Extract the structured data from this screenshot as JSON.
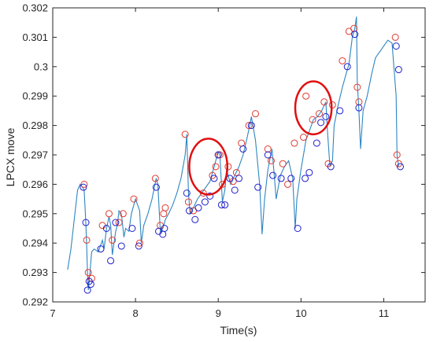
{
  "chart_data": {
    "type": "line",
    "xlabel": "Time(s)",
    "ylabel": "LPCX move",
    "xlim": [
      7,
      11.5
    ],
    "ylim": [
      0.292,
      0.302
    ],
    "xticks": [
      "7",
      "8",
      "9",
      "10",
      "11"
    ],
    "yticks": [
      "0.292",
      "0.293",
      "0.294",
      "0.295",
      "0.296",
      "0.297",
      "0.298",
      "0.299",
      "0.3",
      "0.301",
      "0.302"
    ],
    "grid": false,
    "colors": {
      "line": "#2e86c1",
      "red_markers": "#e03c31",
      "blue_markers": "#1f1fcc",
      "ellipse": "#e01010"
    },
    "series": [
      {
        "role": "trace",
        "x": [
          7.18,
          7.22,
          7.26,
          7.3,
          7.33,
          7.36,
          7.38,
          7.4,
          7.41,
          7.42,
          7.43,
          7.45,
          7.47,
          7.5,
          7.55,
          7.6,
          7.62,
          7.65,
          7.68,
          7.7,
          7.72,
          7.74,
          7.76,
          7.78,
          7.8,
          7.83,
          7.86,
          7.88,
          7.92,
          7.95,
          8.0,
          8.05,
          8.07,
          8.1,
          8.15,
          8.2,
          8.25,
          8.27,
          8.3,
          8.33,
          8.36,
          8.4,
          8.45,
          8.5,
          8.55,
          8.6,
          8.62,
          8.64,
          8.66,
          8.7,
          8.75,
          8.8,
          8.85,
          8.9,
          8.95,
          8.98,
          9.0,
          9.02,
          9.05,
          9.08,
          9.1,
          9.15,
          9.2,
          9.25,
          9.3,
          9.35,
          9.38,
          9.4,
          9.45,
          9.5,
          9.53,
          9.56,
          9.6,
          9.62,
          9.65,
          9.68,
          9.7,
          9.75,
          9.8,
          9.85,
          9.9,
          9.93,
          9.95,
          10.0,
          10.03,
          10.06,
          10.1,
          10.15,
          10.2,
          10.25,
          10.3,
          10.32,
          10.35,
          10.38,
          10.4,
          10.45,
          10.5,
          10.55,
          10.58,
          10.62,
          10.65,
          10.67,
          10.68,
          10.7,
          10.72,
          10.75,
          10.8,
          10.85,
          10.9,
          10.95,
          11.0,
          11.05,
          11.1,
          11.15,
          11.16,
          11.18,
          11.2
        ],
        "y": [
          0.2931,
          0.2938,
          0.2948,
          0.2958,
          0.296,
          0.2959,
          0.2958,
          0.2947,
          0.2939,
          0.293,
          0.2924,
          0.293,
          0.2937,
          0.2938,
          0.2937,
          0.2941,
          0.2938,
          0.2945,
          0.2949,
          0.2946,
          0.2936,
          0.294,
          0.2944,
          0.2946,
          0.2951,
          0.295,
          0.2942,
          0.2945,
          0.2944,
          0.295,
          0.2955,
          0.2951,
          0.294,
          0.2946,
          0.295,
          0.2955,
          0.2962,
          0.296,
          0.2944,
          0.2945,
          0.2948,
          0.295,
          0.2953,
          0.2957,
          0.2962,
          0.297,
          0.2977,
          0.2957,
          0.295,
          0.2952,
          0.2955,
          0.2957,
          0.2959,
          0.2961,
          0.2966,
          0.2969,
          0.2971,
          0.297,
          0.2954,
          0.2958,
          0.2965,
          0.296,
          0.2963,
          0.2966,
          0.297,
          0.2976,
          0.298,
          0.2983,
          0.2975,
          0.296,
          0.2943,
          0.2955,
          0.2965,
          0.2968,
          0.2972,
          0.2962,
          0.2955,
          0.2963,
          0.2966,
          0.2968,
          0.2962,
          0.2945,
          0.2955,
          0.2965,
          0.297,
          0.2975,
          0.2978,
          0.2982,
          0.2983,
          0.2985,
          0.2988,
          0.2978,
          0.2966,
          0.2968,
          0.298,
          0.2987,
          0.2993,
          0.2998,
          0.3001,
          0.301,
          0.3013,
          0.3017,
          0.2995,
          0.2985,
          0.2972,
          0.2985,
          0.299,
          0.2997,
          0.3003,
          0.3005,
          0.3007,
          0.3009,
          0.3008,
          0.299,
          0.297,
          0.2966,
          0.2966
        ]
      },
      {
        "role": "red-markers",
        "x": [
          7.38,
          7.41,
          7.43,
          7.47,
          7.6,
          7.68,
          7.72,
          7.8,
          7.85,
          7.98,
          8.05,
          8.24,
          8.3,
          8.34,
          8.36,
          8.6,
          8.64,
          8.7,
          8.82,
          8.93,
          8.97,
          9.0,
          9.02,
          9.05,
          9.12,
          9.18,
          9.22,
          9.28,
          9.37,
          9.45,
          9.6,
          9.64,
          9.78,
          9.84,
          9.92,
          10.03,
          10.06,
          10.14,
          10.22,
          10.28,
          10.33,
          10.38,
          10.5,
          10.58,
          10.64,
          10.68,
          10.7,
          11.14,
          11.16,
          11.18
        ],
        "y": [
          0.296,
          0.2941,
          0.293,
          0.2928,
          0.2946,
          0.295,
          0.2941,
          0.2947,
          0.295,
          0.2955,
          0.294,
          0.2962,
          0.2946,
          0.295,
          0.2952,
          0.2977,
          0.2954,
          0.2951,
          0.2957,
          0.2963,
          0.2966,
          0.297,
          0.297,
          0.296,
          0.2966,
          0.2961,
          0.2964,
          0.2974,
          0.298,
          0.2984,
          0.2972,
          0.2968,
          0.2967,
          0.296,
          0.2974,
          0.2976,
          0.299,
          0.2982,
          0.2984,
          0.2988,
          0.2967,
          0.2987,
          0.3002,
          0.3012,
          0.3013,
          0.2993,
          0.2988,
          0.301,
          0.297,
          0.2967
        ]
      },
      {
        "role": "blue-markers",
        "x": [
          7.37,
          7.4,
          7.42,
          7.44,
          7.46,
          7.58,
          7.65,
          7.7,
          7.76,
          7.83,
          7.96,
          8.04,
          8.25,
          8.28,
          8.33,
          8.35,
          8.62,
          8.65,
          8.72,
          8.76,
          8.84,
          8.9,
          8.95,
          9.0,
          9.04,
          9.08,
          9.14,
          9.2,
          9.25,
          9.3,
          9.4,
          9.48,
          9.6,
          9.66,
          9.76,
          9.88,
          9.96,
          10.05,
          10.1,
          10.19,
          10.24,
          10.3,
          10.36,
          10.47,
          10.56,
          10.65,
          10.7,
          11.15,
          11.18,
          11.2
        ],
        "y": [
          0.2959,
          0.2947,
          0.2924,
          0.2927,
          0.2926,
          0.2938,
          0.2945,
          0.2934,
          0.2947,
          0.2939,
          0.2945,
          0.2939,
          0.2959,
          0.2944,
          0.2943,
          0.2945,
          0.2957,
          0.2951,
          0.2948,
          0.2952,
          0.2954,
          0.2956,
          0.2962,
          0.297,
          0.2953,
          0.2953,
          0.2962,
          0.2958,
          0.2962,
          0.2972,
          0.298,
          0.2959,
          0.297,
          0.2963,
          0.2962,
          0.2962,
          0.2945,
          0.2962,
          0.2964,
          0.2974,
          0.2981,
          0.2983,
          0.2966,
          0.2985,
          0.3,
          0.3011,
          0.2986,
          0.3007,
          0.2999,
          0.2966
        ]
      }
    ],
    "annotations": [
      {
        "shape": "ellipse",
        "cx": 8.88,
        "cy": 0.2966,
        "rx": 0.23,
        "ry": 0.00095
      },
      {
        "shape": "ellipse",
        "cx": 10.15,
        "cy": 0.2986,
        "rx": 0.22,
        "ry": 0.0009
      }
    ]
  }
}
